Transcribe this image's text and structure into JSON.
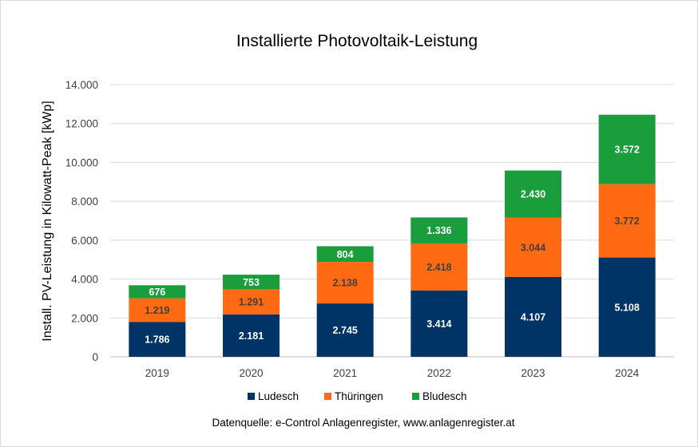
{
  "chart_data": {
    "type": "bar",
    "stacked": true,
    "title": "Installierte Photovoltaik-Leistung",
    "ylabel": "Install. PV-Leistung in Kilowatt-Peak [kWp]",
    "xlabel": "",
    "categories": [
      "2019",
      "2020",
      "2021",
      "2022",
      "2023",
      "2024"
    ],
    "ylim": [
      0,
      14000
    ],
    "yticks": [
      0,
      2000,
      4000,
      6000,
      8000,
      10000,
      12000,
      14000
    ],
    "ytick_labels": [
      "0",
      "2.000",
      "4.000",
      "6.000",
      "8.000",
      "10.000",
      "12.000",
      "14.000"
    ],
    "grid": true,
    "legend_position": "bottom",
    "series": [
      {
        "name": "Ludesch",
        "color": "#003366",
        "label_color": "#ffffff",
        "values": [
          1786,
          2181,
          2745,
          3414,
          4107,
          5108
        ],
        "labels": [
          "1.786",
          "2.181",
          "2.745",
          "3.414",
          "4.107",
          "5.108"
        ]
      },
      {
        "name": "Thüringen",
        "color": "#ff6a13",
        "label_color": "#404040",
        "values": [
          1219,
          1291,
          2138,
          2418,
          3044,
          3772
        ],
        "labels": [
          "1.219",
          "1.291",
          "2.138",
          "2.418",
          "3.044",
          "3.772"
        ]
      },
      {
        "name": "Bludesch",
        "color": "#1a9e3c",
        "label_color": "#ffffff",
        "values": [
          676,
          753,
          804,
          1336,
          2430,
          3572
        ],
        "labels": [
          "676",
          "753",
          "804",
          "1.336",
          "2.430",
          "3.572"
        ]
      }
    ],
    "source": "Datenquelle: e-Control Anlagenregister, www.anlagenregister.at"
  }
}
